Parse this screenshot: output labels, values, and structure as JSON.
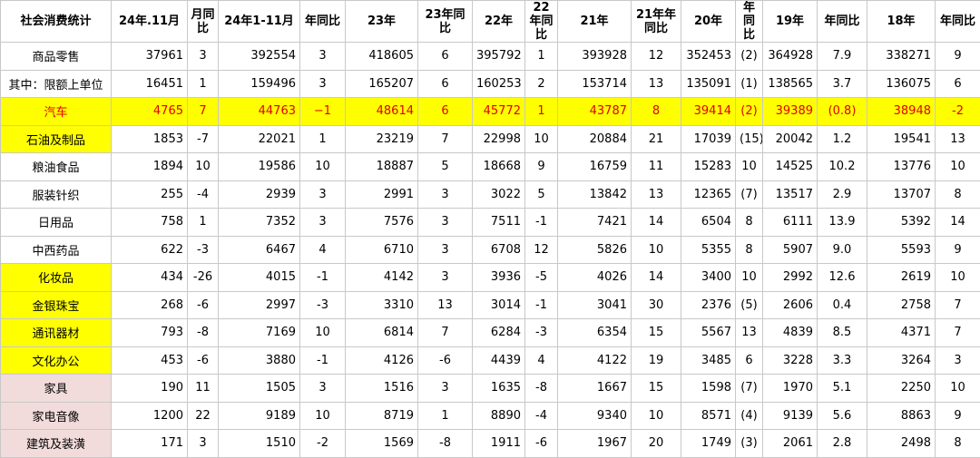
{
  "table": {
    "header": [
      "社会消费统计",
      "24年.11月",
      "月同比",
      "24年1-11月",
      "年同比",
      "23年",
      "23年同比",
      "22年",
      "22年同比",
      "21年",
      "21年年同比",
      "20年",
      "年同比",
      "19年",
      "年同比",
      "18年",
      "年同比"
    ],
    "rows": [
      [
        "商品零售",
        37961,
        3,
        392554,
        3,
        418605,
        6,
        395792,
        1,
        393928,
        12,
        352453,
        {
          "value": -2,
          "label": "(2)"
        },
        364928,
        7.9,
        338271,
        9
      ],
      [
        "其中：限额上单位",
        16451,
        1,
        159496,
        3,
        165207,
        6,
        160253,
        2,
        153714,
        13,
        135091,
        {
          "value": -1,
          "label": "(1)"
        },
        138565,
        3.7,
        136075,
        6
      ],
      [
        "汽车",
        4765,
        7,
        44763,
        {
          "value": -1,
          "label": "−1"
        },
        48614,
        6,
        45772,
        1,
        43787,
        8,
        39414,
        {
          "value": -2,
          "label": "(2)"
        },
        39389,
        {
          "value": -0.8,
          "label": "(0.8)"
        },
        38948,
        -2
      ],
      [
        "石油及制品",
        1853,
        -7,
        22021,
        1,
        23219,
        7,
        22998,
        10,
        20884,
        21,
        17039,
        {
          "value": -15,
          "label": "(15)"
        },
        20042,
        1.2,
        19541,
        13
      ],
      [
        "粮油食品",
        1894,
        10,
        19586,
        10,
        18887,
        5,
        18668,
        9,
        16759,
        11,
        15283,
        10,
        14525,
        10.2,
        13776,
        10
      ],
      [
        "服装针织",
        255,
        -4,
        2939,
        3,
        2991,
        3,
        3022,
        5,
        13842,
        13,
        12365,
        {
          "value": -7,
          "label": "(7)"
        },
        13517,
        2.9,
        13707,
        8
      ],
      [
        "日用品",
        758,
        1,
        7352,
        3,
        7576,
        3,
        7511,
        -1,
        7421,
        14,
        6504,
        8,
        6111,
        13.9,
        5392,
        14
      ],
      [
        "中西药品",
        622,
        -3,
        6467,
        4,
        6710,
        3,
        6708,
        12,
        5826,
        10,
        5355,
        8,
        5907,
        {
          "value": 9,
          "label": "9.0"
        },
        5593,
        9
      ],
      [
        "化妆品",
        434,
        -26,
        4015,
        -1,
        4142,
        3,
        3936,
        -5,
        4026,
        14,
        3400,
        10,
        2992,
        12.6,
        2619,
        10
      ],
      [
        "金银珠宝",
        268,
        -6,
        2997,
        -3,
        3310,
        13,
        3014,
        -1,
        3041,
        30,
        2376,
        {
          "value": -5,
          "label": "(5)"
        },
        2606,
        0.4,
        2758,
        7
      ],
      [
        "通讯器材",
        793,
        -8,
        7169,
        10,
        6814,
        7,
        6284,
        -3,
        6354,
        15,
        5567,
        13,
        4839,
        8.5,
        4371,
        7
      ],
      [
        "文化办公",
        453,
        -6,
        3880,
        -1,
        4126,
        -6,
        4439,
        4,
        4122,
        19,
        3485,
        6,
        3228,
        3.3,
        3264,
        3
      ],
      [
        "家具",
        190,
        11,
        1505,
        3,
        1516,
        3,
        1635,
        -8,
        1667,
        15,
        1598,
        {
          "value": -7,
          "label": "(7)"
        },
        1970,
        5.1,
        2250,
        10
      ],
      [
        "家电音像",
        1200,
        22,
        9189,
        10,
        8719,
        1,
        8890,
        -4,
        9340,
        10,
        8571,
        {
          "value": -4,
          "label": "(4)"
        },
        9139,
        5.6,
        8863,
        9
      ],
      [
        "建筑及装潢",
        171,
        3,
        1510,
        -2,
        1569,
        -8,
        1911,
        -6,
        1967,
        20,
        1749,
        {
          "value": -3,
          "label": "(3)"
        },
        2061,
        2.8,
        2498,
        8
      ]
    ]
  }
}
